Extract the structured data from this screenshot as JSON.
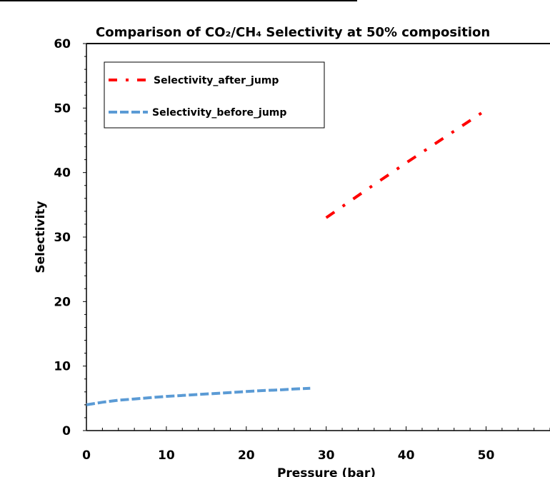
{
  "chart_data": {
    "type": "line",
    "title": "Comparison of CO₂/CH₄ Selectivity at 50% composition",
    "xlabel": "Pressure (bar)",
    "ylabel": "Selectivity",
    "xlim": [
      0,
      58
    ],
    "ylim": [
      0,
      60
    ],
    "x_ticks": [
      0,
      10,
      20,
      30,
      40,
      50
    ],
    "y_ticks": [
      0,
      10,
      20,
      30,
      40,
      50,
      60
    ],
    "grid": false,
    "legend_position": "top-left",
    "series": [
      {
        "name": "Selectivity_after_jump",
        "color": "#ff0000",
        "style": "dash-dot",
        "x": [
          30,
          35,
          40,
          45,
          50
        ],
        "y": [
          33.0,
          37.3,
          41.5,
          45.6,
          49.7
        ]
      },
      {
        "name": "Selectivity_before_jump",
        "color": "#5b9bd5",
        "style": "dashed",
        "x": [
          0,
          2,
          4,
          6,
          8,
          10,
          12,
          14,
          16,
          18,
          20,
          22,
          24,
          26,
          28
        ],
        "y": [
          4.0,
          4.4,
          4.7,
          4.9,
          5.1,
          5.3,
          5.45,
          5.6,
          5.75,
          5.9,
          6.05,
          6.2,
          6.3,
          6.45,
          6.55
        ]
      }
    ]
  }
}
